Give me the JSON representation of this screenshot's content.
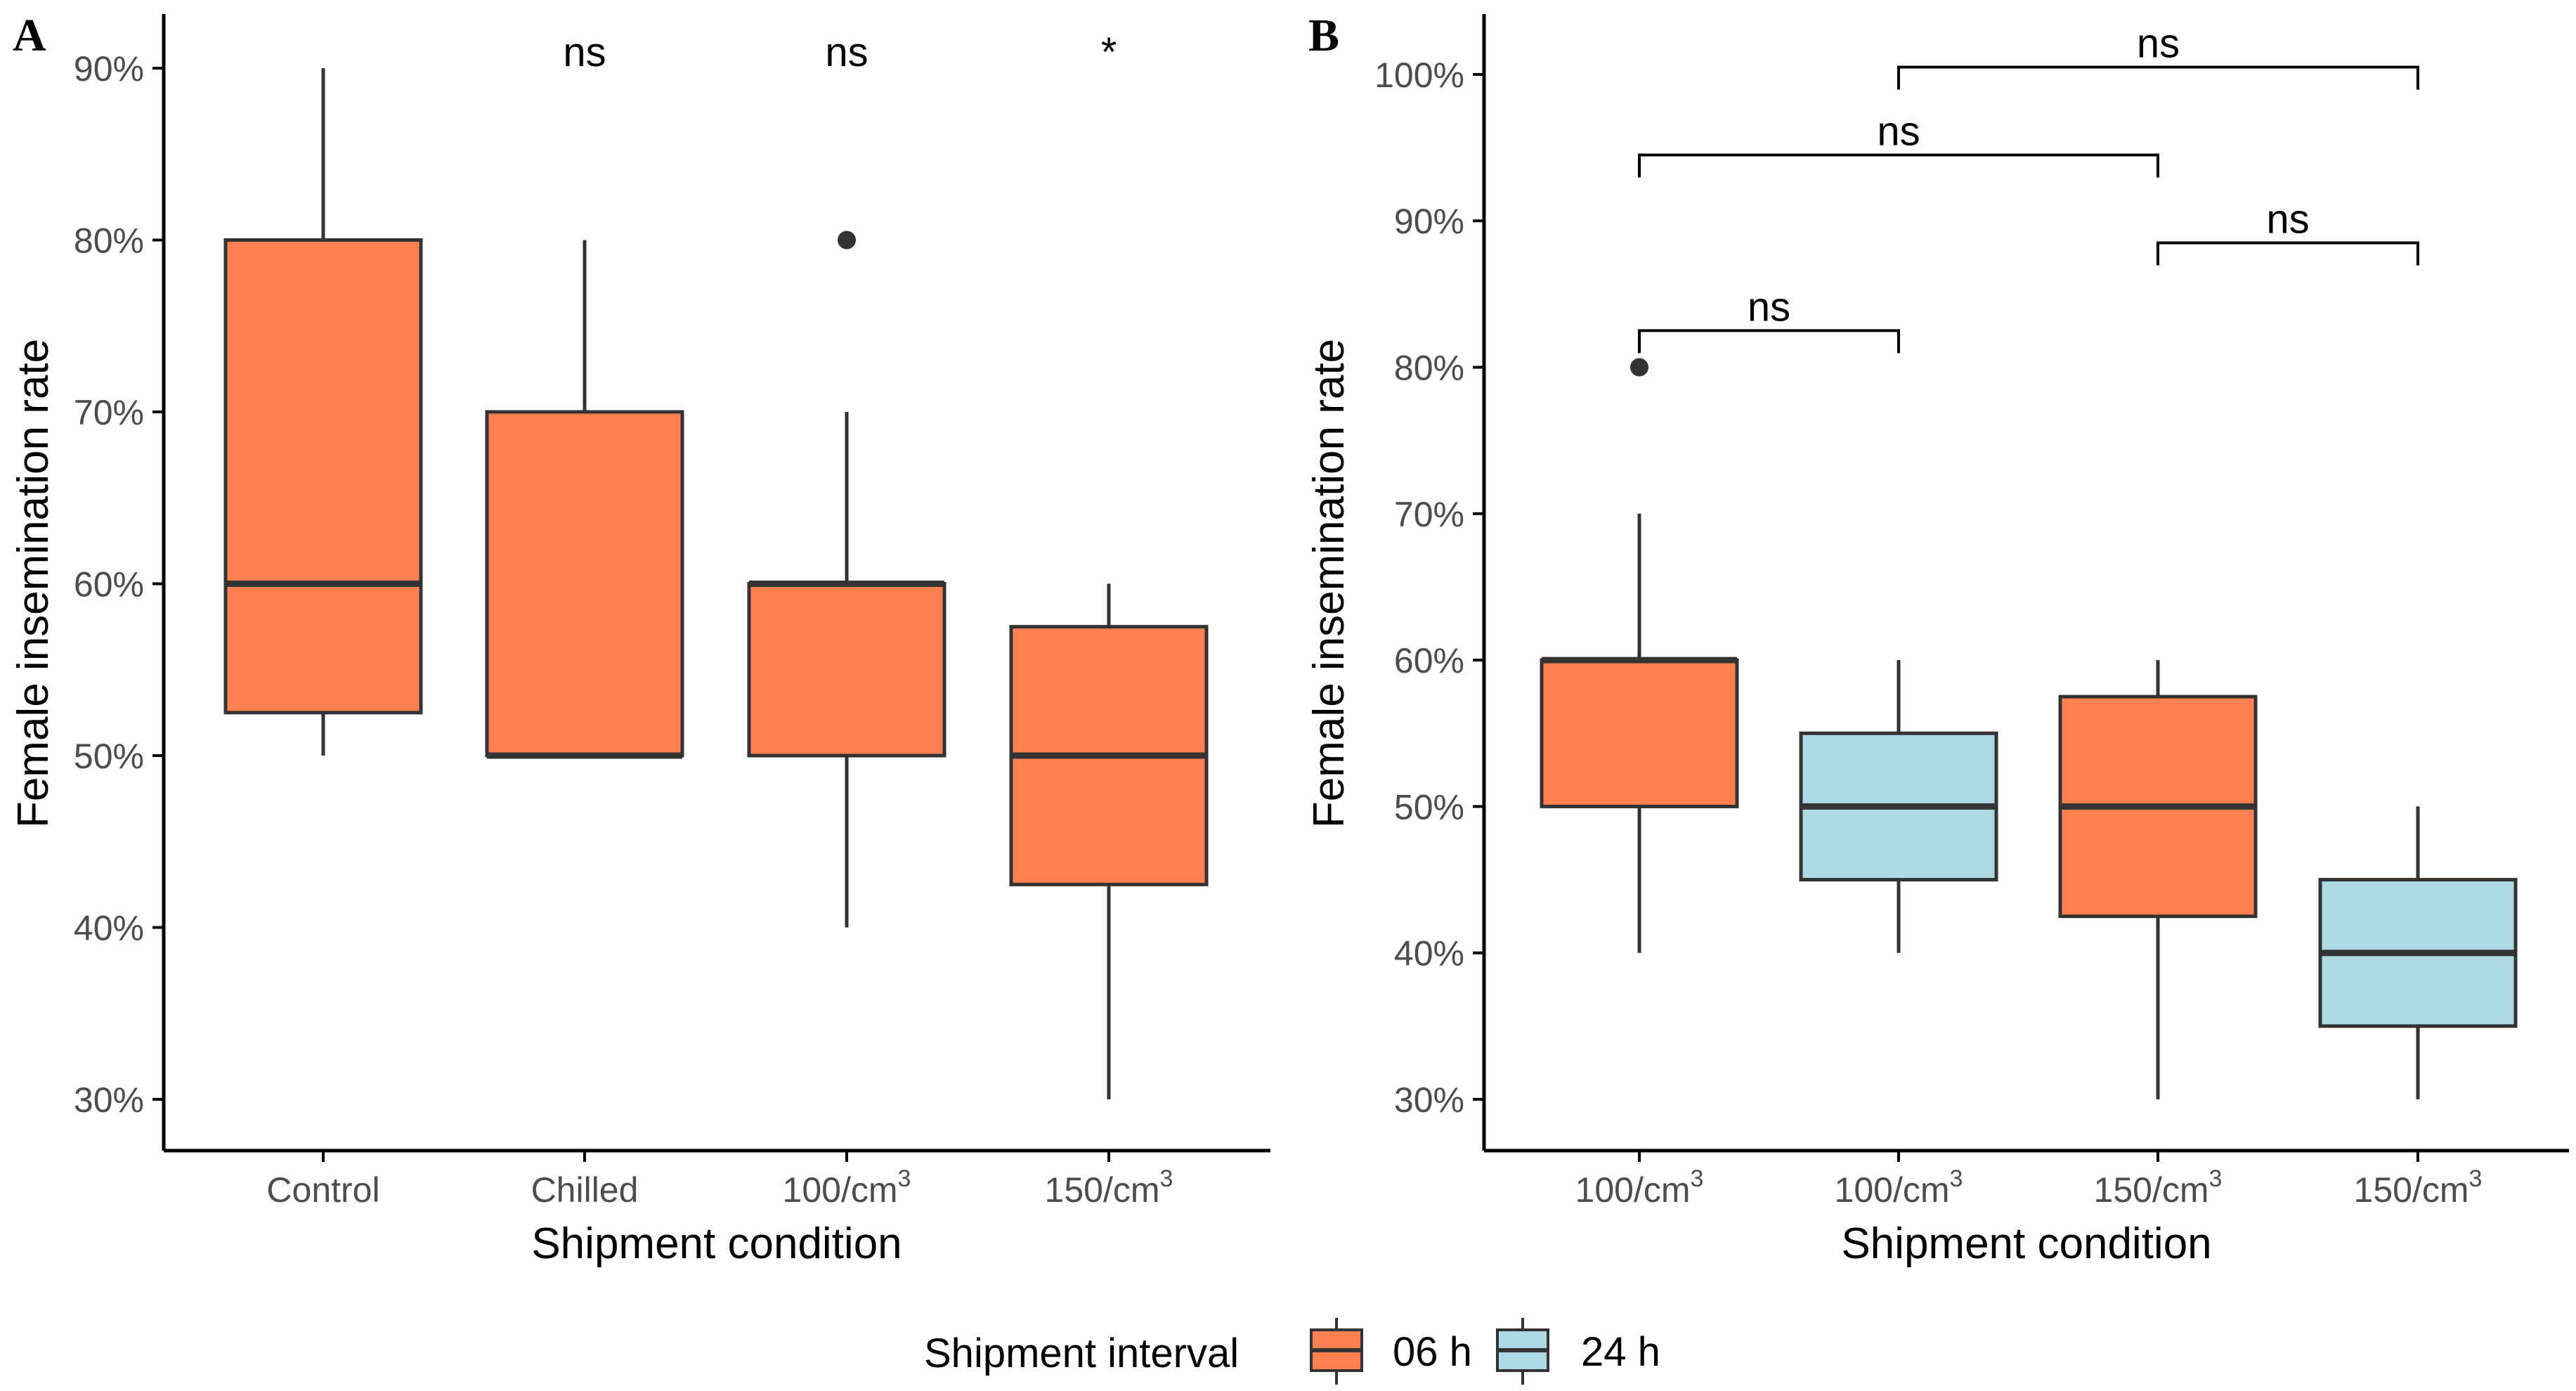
{
  "colors": {
    "h06": "#FF7F50",
    "h24": "#ADD8E6",
    "stroke": "#333333"
  },
  "legend": {
    "title": "Shipment interval",
    "items": [
      {
        "key": "06h",
        "label": "06 h",
        "color": "#FF7F50"
      },
      {
        "key": "24h",
        "label": "24 h",
        "color": "#ADD8E6"
      }
    ]
  },
  "chart_data": [
    {
      "panel": "A",
      "type": "box",
      "xlabel": "Shipment condition",
      "ylabel": "Female insemination rate",
      "yticks": [
        "30%",
        "40%",
        "50%",
        "60%",
        "70%",
        "80%",
        "90%"
      ],
      "ylim": [
        28,
        93
      ],
      "categories": [
        "Control",
        "Chilled",
        "100/cm",
        "150/cm"
      ],
      "category_superscripts": [
        "",
        "",
        "3",
        "3"
      ],
      "boxes": [
        {
          "category": "Control",
          "interval": "06 h",
          "min": 50,
          "q1": 52.5,
          "median": 60,
          "q3": 80,
          "max": 90,
          "outliers": [],
          "annotation": ""
        },
        {
          "category": "Chilled",
          "interval": "06 h",
          "min": 50,
          "q1": 50,
          "median": 50,
          "q3": 70,
          "max": 80,
          "outliers": [],
          "annotation": "ns"
        },
        {
          "category": "100/cm3",
          "interval": "06 h",
          "min": 40,
          "q1": 50,
          "median": 60,
          "q3": 60,
          "max": 70,
          "outliers": [
            80
          ],
          "annotation": "ns"
        },
        {
          "category": "150/cm3",
          "interval": "06 h",
          "min": 30,
          "q1": 42.5,
          "median": 50,
          "q3": 57.5,
          "max": 60,
          "outliers": [],
          "annotation": "*"
        }
      ]
    },
    {
      "panel": "B",
      "type": "box",
      "xlabel": "Shipment condition",
      "ylabel": "Female insemination rate",
      "yticks": [
        "30%",
        "40%",
        "50%",
        "60%",
        "70%",
        "80%",
        "90%",
        "100%"
      ],
      "ylim": [
        27,
        104
      ],
      "categories": [
        "100/cm",
        "100/cm",
        "150/cm",
        "150/cm"
      ],
      "category_superscripts": [
        "3",
        "3",
        "3",
        "3"
      ],
      "boxes": [
        {
          "category": "100/cm3",
          "interval": "06 h",
          "min": 40,
          "q1": 50,
          "median": 60,
          "q3": 60,
          "max": 70,
          "outliers": [
            80
          ]
        },
        {
          "category": "100/cm3",
          "interval": "24 h",
          "min": 40,
          "q1": 45,
          "median": 50,
          "q3": 55,
          "max": 60,
          "outliers": []
        },
        {
          "category": "150/cm3",
          "interval": "06 h",
          "min": 30,
          "q1": 42.5,
          "median": 50,
          "q3": 57.5,
          "max": 60,
          "outliers": []
        },
        {
          "category": "150/cm3",
          "interval": "24 h",
          "min": 30,
          "q1": 35,
          "median": 40,
          "q3": 45,
          "max": 50,
          "outliers": []
        }
      ],
      "comparisons": [
        {
          "from": 0,
          "to": 1,
          "y": 82.5,
          "label": "ns"
        },
        {
          "from": 2,
          "to": 3,
          "y": 88.5,
          "label": "ns"
        },
        {
          "from": 0,
          "to": 2,
          "y": 94.5,
          "label": "ns"
        },
        {
          "from": 1,
          "to": 3,
          "y": 100.5,
          "label": "ns"
        }
      ]
    }
  ]
}
